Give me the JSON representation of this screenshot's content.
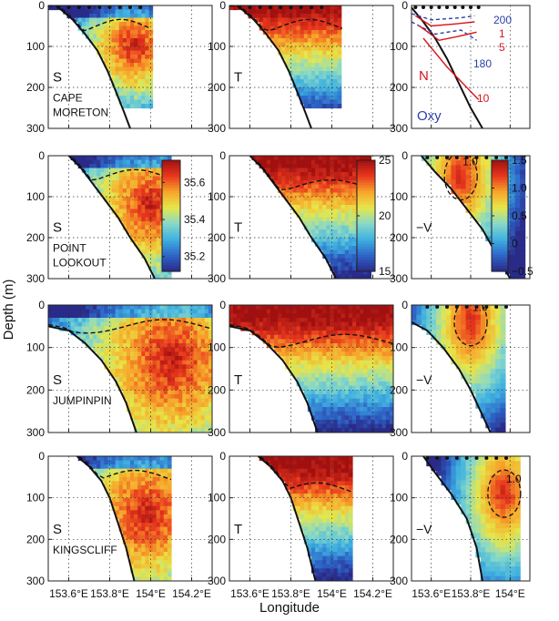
{
  "figure": {
    "y_axis_label": "Depth (m)",
    "x_axis_label": "Longitude"
  },
  "rows": [
    {
      "station": [
        "CAPE",
        "MORETON"
      ],
      "s_label": "S",
      "t_label": "T",
      "third_label": ""
    },
    {
      "station": [
        "POINT",
        "LOOKOUT"
      ],
      "s_label": "S",
      "t_label": "T",
      "third_label": "−V"
    },
    {
      "station": [
        "JUMPINPIN"
      ],
      "s_label": "S",
      "t_label": "T",
      "third_label": "−V"
    },
    {
      "station": [
        "KINGSCLIFF"
      ],
      "s_label": "S",
      "t_label": "T",
      "third_label": "−V"
    }
  ],
  "colorbars": {
    "salinity": {
      "ticks": [
        "35.6",
        "35.4",
        "35.2"
      ],
      "values": [
        35.6,
        35.4,
        35.2
      ],
      "range": [
        35.12,
        35.72
      ]
    },
    "temperature": {
      "ticks": [
        "25",
        "20",
        "15"
      ],
      "values": [
        25,
        20,
        15
      ],
      "range": [
        15,
        25
      ]
    },
    "velocity": {
      "ticks": [
        "1.5",
        "1.0",
        "0.5",
        "0",
        "−0.5"
      ],
      "values": [
        1.5,
        1.0,
        0.5,
        0,
        -0.5
      ],
      "range": [
        -0.5,
        1.5
      ]
    }
  },
  "legend": {
    "N": "N",
    "Oxy": "Oxy",
    "oxy_contours": [
      "200",
      "180"
    ],
    "n_contours": [
      "1",
      "5",
      "10"
    ],
    "oxy_color": "#2b3fa8",
    "n_color": "#d8141c"
  },
  "velocity_contour_label": "1.0",
  "colors": {
    "cmap": [
      "#2a2a88",
      "#2e65c8",
      "#3fb0e0",
      "#88d9c8",
      "#e6e64a",
      "#f7a52a",
      "#e8371e",
      "#a01010"
    ]
  },
  "chart_data": {
    "type": "heatmap",
    "description_free_axes": true,
    "x_ticks": [
      "153.6°E",
      "153.8°E",
      "154°E",
      "154.2°E"
    ],
    "x_tick_values": [
      153.6,
      153.8,
      154.0,
      154.2
    ],
    "x_range": [
      153.5,
      154.3
    ],
    "right_x_ticks": [
      "153.6°E",
      "153.8°E",
      "154°E"
    ],
    "right_x_tick_values": [
      153.6,
      153.8,
      154.0
    ],
    "right_x_range": [
      153.5,
      154.1
    ],
    "y_ticks": [
      "0",
      "100",
      "200",
      "300"
    ],
    "y_tick_values": [
      0,
      100,
      200,
      300
    ],
    "y_range": [
      0,
      300
    ],
    "panels": [
      {
        "row": 0,
        "var": "S",
        "bathy": [
          [
            153.55,
            5
          ],
          [
            153.62,
            35
          ],
          [
            153.68,
            70
          ],
          [
            153.74,
            110
          ],
          [
            153.79,
            160
          ],
          [
            153.83,
            210
          ],
          [
            153.87,
            260
          ],
          [
            153.9,
            300
          ]
        ],
        "xmax": 154.0,
        "bottom_cut": 250,
        "hot": [
          153.92,
          100
        ],
        "mix": 0.45
      },
      {
        "row": 0,
        "var": "T",
        "bathy": [
          [
            153.55,
            5
          ],
          [
            153.62,
            35
          ],
          [
            153.68,
            70
          ],
          [
            153.74,
            110
          ],
          [
            153.79,
            160
          ],
          [
            153.83,
            210
          ],
          [
            153.87,
            260
          ],
          [
            153.9,
            300
          ]
        ],
        "xmax": 154.05,
        "bottom_cut": 250,
        "surface_warm": 40
      },
      {
        "row": 1,
        "var": "S",
        "bathy": [
          [
            153.6,
            0
          ],
          [
            153.66,
            30
          ],
          [
            153.72,
            70
          ],
          [
            153.78,
            110
          ],
          [
            153.84,
            150
          ],
          [
            153.9,
            200
          ],
          [
            153.97,
            250
          ],
          [
            154.02,
            300
          ]
        ],
        "xmax": 154.1,
        "bottom_cut": 300,
        "hot": [
          154.0,
          120
        ],
        "mix": 0.35
      },
      {
        "row": 1,
        "var": "T",
        "bathy": [
          [
            153.6,
            0
          ],
          [
            153.66,
            30
          ],
          [
            153.72,
            70
          ],
          [
            153.78,
            110
          ],
          [
            153.84,
            150
          ],
          [
            153.9,
            200
          ],
          [
            153.97,
            250
          ],
          [
            154.02,
            300
          ]
        ],
        "xmax": 154.2,
        "bottom_cut": 300,
        "surface_warm": 90
      },
      {
        "row": 2,
        "var": "S",
        "bathy": [
          [
            153.5,
            50
          ],
          [
            153.6,
            60
          ],
          [
            153.68,
            90
          ],
          [
            153.76,
            130
          ],
          [
            153.83,
            180
          ],
          [
            153.88,
            230
          ],
          [
            153.93,
            300
          ]
        ],
        "xmax": 154.3,
        "bottom_cut": 300,
        "hot": [
          154.1,
          130
        ],
        "mix": 0.25
      },
      {
        "row": 2,
        "var": "T",
        "bathy": [
          [
            153.5,
            50
          ],
          [
            153.6,
            60
          ],
          [
            153.68,
            90
          ],
          [
            153.76,
            130
          ],
          [
            153.83,
            180
          ],
          [
            153.88,
            230
          ],
          [
            153.93,
            300
          ]
        ],
        "xmax": 154.3,
        "bottom_cut": 300,
        "surface_warm": 110
      },
      {
        "row": 3,
        "var": "S",
        "bathy": [
          [
            153.64,
            0
          ],
          [
            153.7,
            25
          ],
          [
            153.76,
            60
          ],
          [
            153.8,
            100
          ],
          [
            153.84,
            160
          ],
          [
            153.88,
            220
          ],
          [
            153.92,
            300
          ]
        ],
        "xmax": 154.1,
        "bottom_cut": 300,
        "hot": [
          153.98,
          140
        ],
        "mix": 0.3
      },
      {
        "row": 3,
        "var": "T",
        "bathy": [
          [
            153.64,
            0
          ],
          [
            153.7,
            25
          ],
          [
            153.76,
            60
          ],
          [
            153.8,
            100
          ],
          [
            153.84,
            160
          ],
          [
            153.88,
            220
          ],
          [
            153.92,
            300
          ]
        ],
        "xmax": 154.1,
        "bottom_cut": 300,
        "surface_warm": 100
      }
    ],
    "velocity_panels": [
      {
        "row": 1,
        "bathy": [
          [
            153.55,
            0
          ],
          [
            153.62,
            40
          ],
          [
            153.7,
            80
          ],
          [
            153.78,
            130
          ],
          [
            153.86,
            180
          ],
          [
            153.93,
            240
          ],
          [
            154.0,
            300
          ]
        ],
        "xmax": 154.08,
        "bottom_cut": 300,
        "core": [
          153.75,
          50
        ]
      },
      {
        "row": 2,
        "bathy": [
          [
            153.5,
            40
          ],
          [
            153.58,
            60
          ],
          [
            153.66,
            100
          ],
          [
            153.74,
            150
          ],
          [
            153.8,
            200
          ],
          [
            153.86,
            260
          ],
          [
            153.9,
            300
          ]
        ],
        "xmax": 153.97,
        "bottom_cut": 300,
        "core": [
          153.8,
          40
        ]
      },
      {
        "row": 3,
        "bathy": [
          [
            153.56,
            0
          ],
          [
            153.62,
            40
          ],
          [
            153.7,
            90
          ],
          [
            153.78,
            150
          ],
          [
            153.83,
            220
          ],
          [
            153.86,
            300
          ]
        ],
        "xmax": 154.05,
        "bottom_cut": 300,
        "core": [
          153.97,
          90
        ]
      }
    ]
  }
}
